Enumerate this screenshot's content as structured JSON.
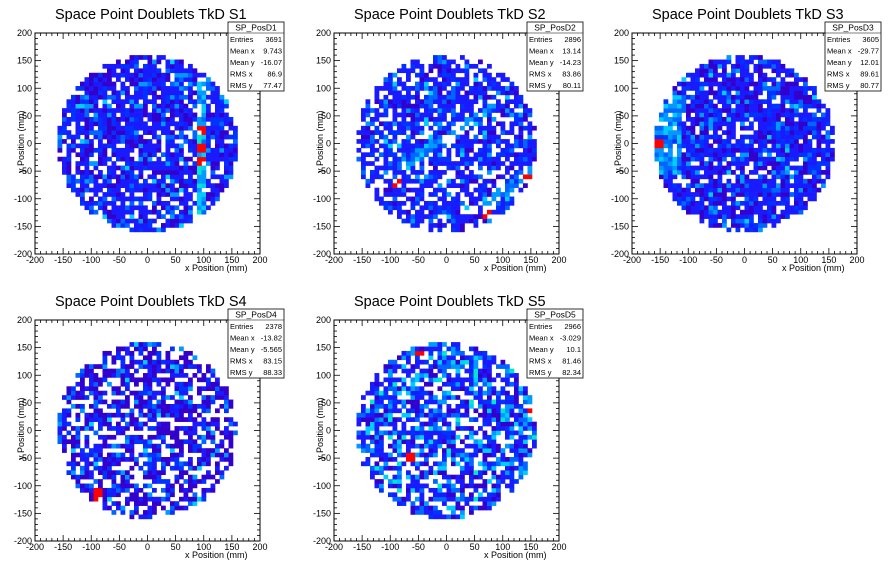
{
  "chart_data": [
    {
      "type": "heatmap",
      "title": "Space Point Doublets TkD S1",
      "xlabel": "x Position (mm)",
      "ylabel": "y Position (mm)",
      "xlim": [
        -200,
        200
      ],
      "ylim": [
        -200,
        200
      ],
      "xticks": [
        "-200",
        "-150",
        "-100",
        "-50",
        "0",
        "50",
        "100",
        "150",
        "200"
      ],
      "yticks": [
        "-200",
        "-150",
        "-100",
        "-50",
        "0",
        "50",
        "100",
        "150",
        "200"
      ],
      "stats": {
        "name": "SP_PosD1",
        "rows": [
          {
            "label": "Entries",
            "value": "3691"
          },
          {
            "label": "Mean x",
            "value": "9.743"
          },
          {
            "label": "Mean y",
            "value": "-16.07"
          },
          {
            "label": "RMS x",
            "value": "86.9"
          },
          {
            "label": "RMS y",
            "value": "77.47"
          }
        ]
      },
      "bin_width_mm": 8,
      "occupied_radius_mm": 160,
      "fill_fraction": 0.8,
      "features": [
        {
          "kind": "vertical_band",
          "x_mm": 95,
          "y_range_mm": [
            -130,
            120
          ],
          "intensity": "green-red"
        }
      ],
      "hot_bins": [
        [
          95,
          25
        ],
        [
          95,
          -10
        ],
        [
          95,
          -30
        ]
      ]
    },
    {
      "type": "heatmap",
      "title": "Space Point Doublets TkD S2",
      "xlabel": "x Position (mm)",
      "ylabel": "y Position (mm)",
      "xlim": [
        -200,
        200
      ],
      "ylim": [
        -200,
        200
      ],
      "xticks": [
        "-200",
        "-150",
        "-100",
        "-50",
        "0",
        "50",
        "100",
        "150",
        "200"
      ],
      "yticks": [
        "-200",
        "-150",
        "-100",
        "-50",
        "0",
        "50",
        "100",
        "150",
        "200"
      ],
      "stats": {
        "name": "SP_PosD2",
        "rows": [
          {
            "label": "Entries",
            "value": "2896"
          },
          {
            "label": "Mean x",
            "value": "13.14"
          },
          {
            "label": "Mean y",
            "value": "-14.23"
          },
          {
            "label": "RMS x",
            "value": "83.86"
          },
          {
            "label": "RMS y",
            "value": "80.11"
          }
        ]
      },
      "bin_width_mm": 8,
      "occupied_radius_mm": 160,
      "fill_fraction": 0.7,
      "features": [
        {
          "kind": "diagonal_band",
          "from_mm": [
            -80,
            -40
          ],
          "to_mm": [
            80,
            60
          ],
          "intensity": "cyan-green"
        },
        {
          "kind": "diagonal_band",
          "from_mm": [
            70,
            -110
          ],
          "to_mm": [
            150,
            -50
          ],
          "intensity": "green-yellow"
        }
      ],
      "hot_bins": [
        [
          -85,
          -75
        ],
        [
          70,
          -130
        ],
        [
          145,
          -60
        ]
      ]
    },
    {
      "type": "heatmap",
      "title": "Space Point Doublets TkD S3",
      "xlabel": "x Position (mm)",
      "ylabel": "y Position (mm)",
      "xlim": [
        -200,
        200
      ],
      "ylim": [
        -200,
        200
      ],
      "xticks": [
        "-200",
        "-150",
        "-100",
        "-50",
        "0",
        "50",
        "100",
        "150",
        "200"
      ],
      "yticks": [
        "-200",
        "-150",
        "-100",
        "-50",
        "0",
        "50",
        "100",
        "150",
        "200"
      ],
      "stats": {
        "name": "SP_PosD3",
        "rows": [
          {
            "label": "Entries",
            "value": "3605"
          },
          {
            "label": "Mean x",
            "value": "-29.77"
          },
          {
            "label": "Mean y",
            "value": "12.01"
          },
          {
            "label": "RMS x",
            "value": "89.61"
          },
          {
            "label": "RMS y",
            "value": "80.77"
          }
        ]
      },
      "bin_width_mm": 8,
      "occupied_radius_mm": 160,
      "fill_fraction": 0.85,
      "features": [
        {
          "kind": "left_edge_arc",
          "x_mm": -140,
          "y_range_mm": [
            -60,
            90
          ],
          "intensity": "cyan-green"
        }
      ],
      "hot_bins": [
        [
          -155,
          0
        ]
      ]
    },
    {
      "type": "heatmap",
      "title": "Space Point Doublets TkD S4",
      "xlabel": "x Position (mm)",
      "ylabel": "y Position (mm)",
      "xlim": [
        -200,
        200
      ],
      "ylim": [
        -200,
        200
      ],
      "xticks": [
        "-200",
        "-150",
        "-100",
        "-50",
        "0",
        "50",
        "100",
        "150",
        "200"
      ],
      "yticks": [
        "-200",
        "-150",
        "-100",
        "-50",
        "0",
        "50",
        "100",
        "150",
        "200"
      ],
      "stats": {
        "name": "SP_PosD4",
        "rows": [
          {
            "label": "Entries",
            "value": "2378"
          },
          {
            "label": "Mean x",
            "value": "-13.82"
          },
          {
            "label": "Mean y",
            "value": "-5.565"
          },
          {
            "label": "RMS x",
            "value": "83.15"
          },
          {
            "label": "RMS y",
            "value": "88.33"
          }
        ]
      },
      "bin_width_mm": 8,
      "occupied_radius_mm": 160,
      "fill_fraction": 0.65,
      "features": [],
      "hot_bins": [
        [
          -90,
          -115
        ],
        [
          -85,
          -125
        ]
      ]
    },
    {
      "type": "heatmap",
      "title": "Space Point Doublets TkD S5",
      "xlabel": "x Position (mm)",
      "ylabel": "y Position (mm)",
      "xlim": [
        -200,
        200
      ],
      "ylim": [
        -200,
        200
      ],
      "xticks": [
        "-200",
        "-150",
        "-100",
        "-50",
        "0",
        "50",
        "100",
        "150",
        "200"
      ],
      "yticks": [
        "-200",
        "-150",
        "-100",
        "-50",
        "0",
        "50",
        "100",
        "150",
        "200"
      ],
      "stats": {
        "name": "SP_PosD5",
        "rows": [
          {
            "label": "Entries",
            "value": "2966"
          },
          {
            "label": "Mean x",
            "value": "-3.029"
          },
          {
            "label": "Mean y",
            "value": "10.1"
          },
          {
            "label": "RMS x",
            "value": "81.46"
          },
          {
            "label": "RMS y",
            "value": "82.34"
          }
        ]
      },
      "bin_width_mm": 8,
      "occupied_radius_mm": 160,
      "fill_fraction": 0.7,
      "features": [
        {
          "kind": "scattered_green",
          "intensity": "green-yellow"
        }
      ],
      "hot_bins": [
        [
          -65,
          -50
        ],
        [
          155,
          30
        ],
        [
          -50,
          140
        ]
      ]
    }
  ],
  "colors": {
    "palette": [
      "#3300cc",
      "#1a1aff",
      "#0033ff",
      "#0066ff",
      "#0099ff",
      "#00ccff",
      "#00e6cc",
      "#00ff66",
      "#66ff00",
      "#ccff00",
      "#ffcc00",
      "#ff6600",
      "#ff0000"
    ],
    "frame": "#000000",
    "background": "#ffffff"
  }
}
